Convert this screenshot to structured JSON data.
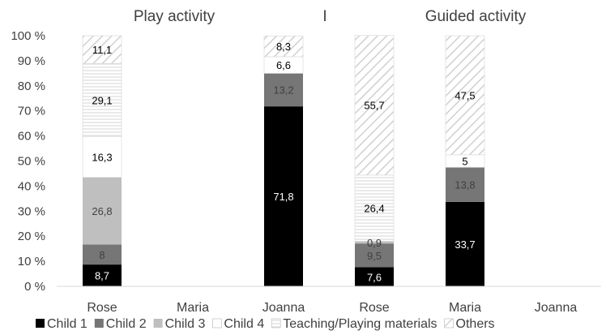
{
  "chart_data": {
    "type": "bar",
    "stacked": true,
    "percent": true,
    "panel_titles": [
      "Play activity",
      "Guided activity"
    ],
    "separator": "I",
    "categories": [
      "Rose",
      "Maria",
      "Joanna",
      "Rose",
      "Maria",
      "Joanna"
    ],
    "y_ticks": [
      "0 %",
      "10 %",
      "20 %",
      "30 %",
      "40 %",
      "50 %",
      "60 %",
      "70 %",
      "80 %",
      "90 %",
      "100 %"
    ],
    "ylim": [
      0,
      100
    ],
    "grid": false,
    "legend_position": "bottom",
    "series": [
      {
        "name": "Child 1",
        "values": [
          8.7,
          0,
          71.8,
          7.6,
          33.7,
          0
        ],
        "labels": [
          "8,7",
          "",
          "71,8",
          "7,6",
          "33,7",
          ""
        ],
        "color": "#000000",
        "pattern": "solid",
        "label_color": "#ffffff"
      },
      {
        "name": "Child 2",
        "values": [
          8.0,
          0,
          13.2,
          9.5,
          13.8,
          0
        ],
        "labels": [
          "8",
          "",
          "13,2",
          "9,5",
          "13,8",
          ""
        ],
        "color": "#767676",
        "pattern": "solid",
        "label_color": "#404040"
      },
      {
        "name": "Child 3",
        "values": [
          26.8,
          0,
          0,
          0.9,
          0,
          0
        ],
        "labels": [
          "26,8",
          "",
          "",
          "0,9",
          "",
          ""
        ],
        "color": "#bfbfbf",
        "pattern": "solid",
        "label_color": "#404040"
      },
      {
        "name": "Child 4",
        "values": [
          16.3,
          0,
          6.6,
          0,
          5.0,
          0
        ],
        "labels": [
          "16,3",
          "",
          "6,6",
          "",
          "5",
          ""
        ],
        "color": "#ffffff",
        "pattern": "solid",
        "label_color": "#000000"
      },
      {
        "name": "Teaching/Playing materials",
        "values": [
          29.1,
          0,
          0,
          26.4,
          0,
          0
        ],
        "labels": [
          "29,1",
          "",
          "",
          "26,4",
          "",
          ""
        ],
        "color": "#d9d9d9",
        "pattern": "horizontal",
        "label_color": "#000000"
      },
      {
        "name": "Others",
        "values": [
          11.1,
          0,
          8.3,
          55.7,
          47.5,
          0
        ],
        "labels": [
          "11,1",
          "",
          "8,3",
          "55,7",
          "47,5",
          ""
        ],
        "color": "#d9d9d9",
        "pattern": "diagonal",
        "label_color": "#000000"
      }
    ]
  }
}
